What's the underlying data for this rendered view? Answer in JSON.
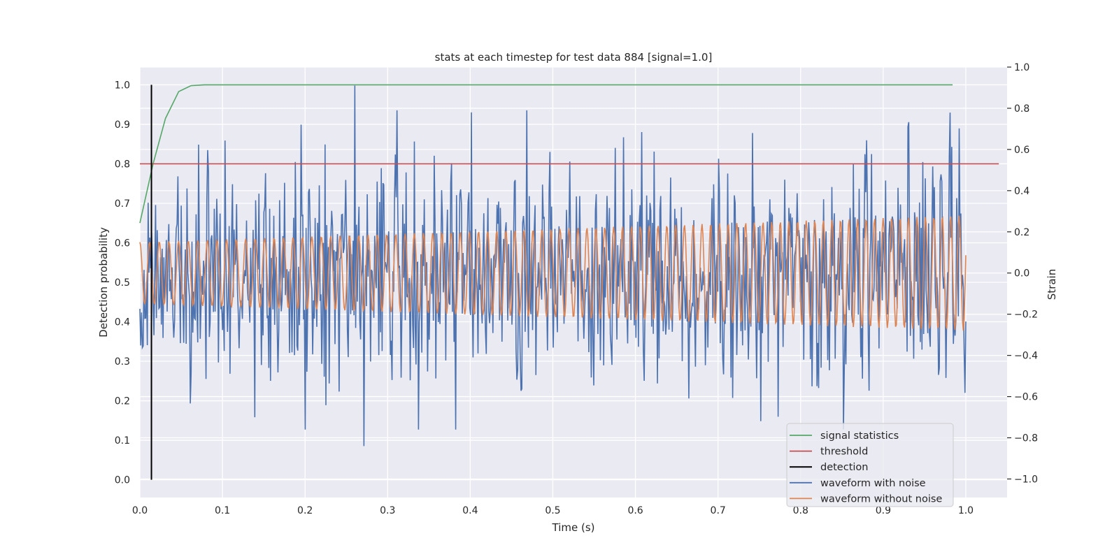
{
  "chart_data": {
    "type": "line",
    "title": "stats at each timestep for test data 884 [signal=1.0]",
    "xlabel": "Time (s)",
    "ylabel_left": "Detection probability",
    "ylabel_right": "Strain",
    "xlim": [
      0.0,
      1.05
    ],
    "ylim_left": [
      -0.045,
      1.045
    ],
    "ylim_right": [
      -1.09,
      1.0
    ],
    "x_ticks": [
      "0.0",
      "0.1",
      "0.2",
      "0.3",
      "0.4",
      "0.5",
      "0.6",
      "0.7",
      "0.8",
      "0.9",
      "1.0"
    ],
    "y_left_ticks": [
      "0.0",
      "0.1",
      "0.2",
      "0.3",
      "0.4",
      "0.5",
      "0.6",
      "0.7",
      "0.8",
      "0.9",
      "1.0"
    ],
    "y_right_ticks": [
      "−1.0",
      "−0.8",
      "−0.6",
      "−0.4",
      "−0.2",
      "0.0",
      "0.2",
      "0.4",
      "0.6",
      "0.8",
      "1.0"
    ],
    "grid": true,
    "legend_position": "lower-right",
    "colors": {
      "signal_statistics": "#55a868",
      "threshold": "#c44e52",
      "detection": "#000000",
      "waveform_with_noise": "#4c72b0",
      "waveform_without_noise": "#dd8452"
    },
    "series": [
      {
        "name": "signal statistics",
        "axis": "left",
        "x": [
          0.0,
          0.016,
          0.031,
          0.047,
          0.062,
          0.078,
          0.1,
          0.2,
          0.4,
          0.6,
          0.8,
          0.984
        ],
        "y": [
          0.65,
          0.8,
          0.915,
          0.983,
          0.998,
          1.0,
          1.0,
          1.0,
          1.0,
          1.0,
          1.0,
          1.0
        ]
      },
      {
        "name": "threshold",
        "axis": "left",
        "x": [
          0.0,
          1.04
        ],
        "y": [
          0.8,
          0.8
        ]
      },
      {
        "name": "detection",
        "axis": "left",
        "x": [
          0.014,
          0.014
        ],
        "y": [
          0.0,
          1.0
        ]
      },
      {
        "name": "waveform with noise",
        "axis": "right",
        "samples": 1000,
        "x_range": [
          0.0,
          1.0
        ],
        "y_range": [
          -0.84,
          0.91
        ],
        "noise_std": 0.26,
        "peaks": [
          {
            "x": 0.26,
            "y": 0.91
          },
          {
            "x": 0.401,
            "y": 0.78
          },
          {
            "x": 0.271,
            "y": -0.84
          },
          {
            "x": 0.742,
            "y": 0.68
          },
          {
            "x": 0.93,
            "y": 0.71
          }
        ]
      },
      {
        "name": "waveform without noise",
        "axis": "right",
        "samples": 1000,
        "x_range": [
          0.0,
          1.0
        ],
        "amplitude_start": 0.15,
        "amplitude_end": 0.28,
        "cycles": 85
      }
    ]
  }
}
